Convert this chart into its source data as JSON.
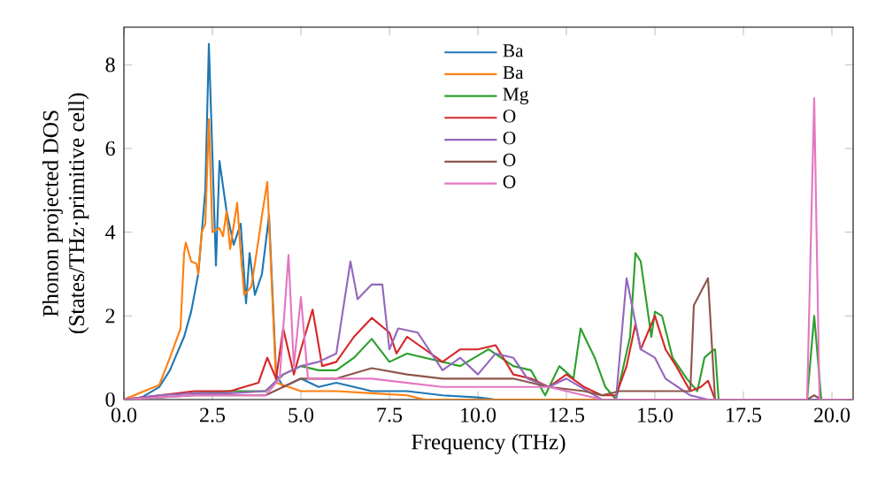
{
  "chart_data": {
    "type": "line",
    "xlabel": "Frequency (THz)",
    "ylabel": "Phonon projected DOS\n(States/THz·primitive cell)",
    "xlim": [
      0,
      20.6
    ],
    "ylim": [
      0,
      8.9
    ],
    "xticks": [
      {
        "value": 0,
        "label": "0.0"
      },
      {
        "value": 2.5,
        "label": "2.5"
      },
      {
        "value": 5,
        "label": "5.0"
      },
      {
        "value": 7.5,
        "label": "7.5"
      },
      {
        "value": 10,
        "label": "10.0"
      },
      {
        "value": 12.5,
        "label": "12.5"
      },
      {
        "value": 15,
        "label": "15.0"
      },
      {
        "value": 17.5,
        "label": "17.5"
      },
      {
        "value": 20,
        "label": "20.0"
      }
    ],
    "yticks": [
      0,
      2,
      4,
      6,
      8
    ],
    "legend": "top",
    "grid": false,
    "series": [
      {
        "name": "Ba",
        "color": "#1f77b4",
        "x": [
          0,
          0.5,
          1.0,
          1.3,
          1.5,
          1.7,
          1.9,
          2.1,
          2.2,
          2.3,
          2.4,
          2.6,
          2.7,
          2.9,
          3.1,
          3.3,
          3.45,
          3.55,
          3.7,
          3.9,
          4.1,
          4.3,
          4.5,
          5.0,
          5.5,
          6.0,
          7.0,
          8.0,
          9.0,
          10.0,
          10.5,
          11.0,
          20.6
        ],
        "values": [
          0,
          0.05,
          0.3,
          0.7,
          1.1,
          1.5,
          2.1,
          3.0,
          4.0,
          5.0,
          8.5,
          3.2,
          5.7,
          4.5,
          3.7,
          4.2,
          2.3,
          3.5,
          2.5,
          3.0,
          4.4,
          0.6,
          0.3,
          0.5,
          0.3,
          0.4,
          0.2,
          0.2,
          0.1,
          0.05,
          0,
          0,
          0
        ]
      },
      {
        "name": "Ba",
        "color": "#ff7f0e",
        "x": [
          0,
          1.0,
          1.3,
          1.6,
          1.7,
          1.75,
          1.9,
          2.05,
          2.1,
          2.2,
          2.3,
          2.4,
          2.5,
          2.7,
          2.8,
          2.9,
          3.0,
          3.2,
          3.3,
          3.4,
          3.6,
          3.8,
          3.9,
          4.05,
          4.3,
          5.0,
          6.0,
          7.0,
          8.0,
          8.5,
          20.6
        ],
        "values": [
          0,
          0.35,
          1.0,
          1.7,
          3.5,
          3.75,
          3.3,
          3.25,
          3.0,
          4.0,
          4.2,
          6.7,
          4.0,
          4.1,
          3.9,
          4.5,
          3.6,
          4.7,
          3.5,
          2.5,
          2.7,
          3.8,
          4.4,
          5.2,
          0.4,
          0.2,
          0.2,
          0.15,
          0.1,
          0,
          0
        ]
      },
      {
        "name": "Mg",
        "color": "#2ca02c",
        "x": [
          2.0,
          3.0,
          4.0,
          4.5,
          5.0,
          5.5,
          6.0,
          6.5,
          7.0,
          7.5,
          8.0,
          8.5,
          9.0,
          9.5,
          10.3,
          11.0,
          11.5,
          11.9,
          12.3,
          12.7,
          12.9,
          13.3,
          13.6,
          13.9,
          14.3,
          14.45,
          14.6,
          14.9,
          15.0,
          15.2,
          15.5,
          15.9,
          16.2,
          16.4,
          16.6,
          16.7,
          16.8,
          19.3,
          19.5,
          19.7,
          20.6
        ],
        "values": [
          0.15,
          0.2,
          0.2,
          0.6,
          0.8,
          0.7,
          0.7,
          1.0,
          1.45,
          0.9,
          1.1,
          1.0,
          0.9,
          0.8,
          1.2,
          0.8,
          0.7,
          0.1,
          0.8,
          0.5,
          1.7,
          1.0,
          0.3,
          0,
          1.5,
          3.5,
          3.3,
          1.5,
          2.1,
          2.0,
          1.0,
          0.5,
          0.2,
          1.0,
          1.15,
          1.2,
          0,
          0,
          2.0,
          0,
          0
        ]
      },
      {
        "name": "O",
        "color": "#d62728",
        "x": [
          0,
          1.0,
          2.0,
          3.0,
          3.8,
          4.05,
          4.3,
          4.5,
          4.8,
          5.0,
          5.33,
          5.6,
          6.0,
          6.5,
          7.0,
          7.5,
          7.7,
          8.0,
          8.5,
          9.0,
          9.5,
          10.0,
          10.5,
          11.0,
          11.5,
          12.0,
          12.5,
          13.0,
          13.5,
          13.9,
          14.2,
          14.45,
          14.6,
          15.0,
          15.3,
          15.6,
          16.0,
          16.3,
          16.5,
          16.7,
          20.6
        ],
        "values": [
          0,
          0.1,
          0.2,
          0.2,
          0.4,
          1.0,
          0.5,
          1.7,
          0.6,
          1.2,
          2.15,
          0.8,
          0.9,
          1.5,
          1.95,
          1.6,
          1.1,
          1.5,
          1.2,
          0.9,
          1.2,
          1.2,
          1.3,
          0.6,
          0.5,
          0.3,
          0.6,
          0.3,
          0.1,
          0.1,
          0.8,
          1.8,
          1.2,
          2.0,
          1.2,
          0.8,
          0.2,
          0.3,
          0.45,
          0,
          0
        ]
      },
      {
        "name": "O",
        "color": "#9467bd",
        "x": [
          0,
          1.0,
          2.0,
          3.0,
          4.0,
          4.5,
          5.0,
          5.5,
          6.0,
          6.4,
          6.6,
          7.0,
          7.3,
          7.5,
          7.75,
          8.3,
          9.0,
          9.5,
          10.0,
          10.5,
          11.0,
          11.4,
          12.0,
          12.5,
          13.5,
          13.9,
          14.2,
          14.6,
          15.0,
          15.3,
          16.0,
          16.5,
          20.6
        ],
        "values": [
          0,
          0.1,
          0.15,
          0.15,
          0.2,
          0.6,
          0.8,
          0.9,
          1.1,
          3.3,
          2.4,
          2.75,
          2.75,
          1.2,
          1.7,
          1.6,
          0.7,
          1.0,
          0.6,
          1.1,
          1.0,
          0.5,
          0.3,
          0.5,
          0,
          0,
          2.9,
          1.2,
          1.0,
          0.5,
          0.1,
          0,
          0
        ]
      },
      {
        "name": "O",
        "color": "#8c564b",
        "x": [
          0,
          2.0,
          4.0,
          4.5,
          5.0,
          6.0,
          7.0,
          8.0,
          9.0,
          10.0,
          11.0,
          12.0,
          13.0,
          13.5,
          14.0,
          15.0,
          16.0,
          16.1,
          16.5,
          16.7,
          19.3,
          19.5,
          19.7,
          20.6
        ],
        "values": [
          0,
          0.1,
          0.1,
          0.3,
          0.5,
          0.5,
          0.75,
          0.6,
          0.5,
          0.5,
          0.5,
          0.3,
          0.2,
          0.1,
          0.2,
          0.2,
          0.2,
          2.25,
          2.9,
          0,
          0,
          0.1,
          0,
          0
        ]
      },
      {
        "name": "O",
        "color": "#e377c2",
        "x": [
          0,
          2.0,
          4.0,
          4.4,
          4.65,
          4.8,
          5.0,
          5.2,
          5.5,
          6.0,
          7.0,
          8.0,
          9.0,
          10.0,
          11.0,
          12.0,
          13.0,
          13.5,
          19.3,
          19.5,
          19.65,
          20.6
        ],
        "values": [
          0,
          0.1,
          0.1,
          0.5,
          3.45,
          0.8,
          2.45,
          0.5,
          0.5,
          0.5,
          0.5,
          0.4,
          0.3,
          0.3,
          0.3,
          0.3,
          0.1,
          0,
          0,
          7.2,
          0,
          0
        ]
      }
    ]
  }
}
